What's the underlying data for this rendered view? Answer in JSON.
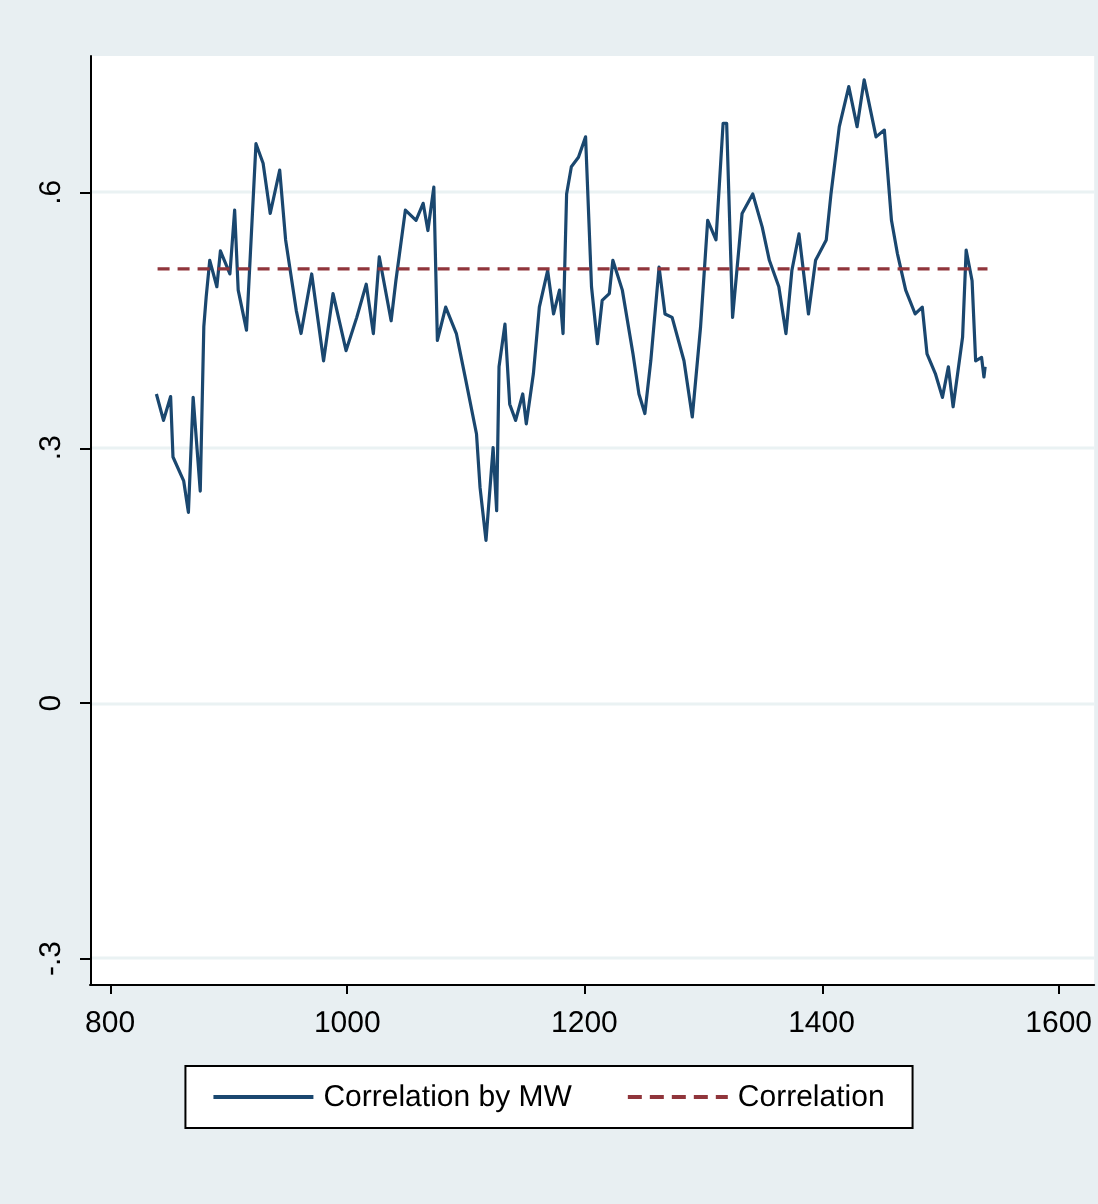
{
  "chart_data": {
    "type": "line",
    "xlim": [
      783,
      1630
    ],
    "ylim": [
      -0.33,
      0.76
    ],
    "xticks": [
      800,
      1000,
      1200,
      1400,
      1600
    ],
    "yticks": [
      {
        "value": -0.3,
        "label": "-.3"
      },
      {
        "value": 0,
        "label": "0"
      },
      {
        "value": 0.3,
        "label": ".3"
      },
      {
        "value": 0.6,
        "label": ".6"
      }
    ],
    "grid": "y",
    "legend": "bottom",
    "marker": "none",
    "series": [
      {
        "name": "Correlation by MW",
        "color": "#1a476f",
        "line_style": "solid",
        "x": [
          839,
          845,
          851,
          853,
          862,
          866,
          870,
          876,
          879,
          881,
          884,
          890,
          893,
          901,
          905,
          908,
          915,
          923,
          929,
          935,
          943,
          948,
          957,
          961,
          970,
          980,
          988,
          999,
          1008,
          1016,
          1022,
          1027,
          1037,
          1041,
          1049,
          1058,
          1064,
          1068,
          1073,
          1076,
          1083,
          1092,
          1100,
          1109,
          1112,
          1117,
          1123,
          1126,
          1128,
          1133,
          1137,
          1142,
          1148,
          1151,
          1157,
          1162,
          1169,
          1174,
          1179,
          1182,
          1185,
          1189,
          1195,
          1201,
          1206,
          1211,
          1215,
          1221,
          1224,
          1232,
          1241,
          1246,
          1251,
          1256,
          1263,
          1268,
          1274,
          1284,
          1291,
          1298,
          1304,
          1311,
          1317,
          1320,
          1325,
          1333,
          1342,
          1350,
          1356,
          1364,
          1370,
          1375,
          1381,
          1389,
          1395,
          1404,
          1408,
          1415,
          1423,
          1430,
          1436,
          1446,
          1453,
          1459,
          1464,
          1471,
          1479,
          1485,
          1489,
          1496,
          1502,
          1507,
          1511,
          1519,
          1522,
          1527,
          1530,
          1535,
          1537,
          1538
        ],
        "values": [
          0.363,
          0.332,
          0.36,
          0.289,
          0.261,
          0.224,
          0.359,
          0.249,
          0.442,
          0.477,
          0.52,
          0.489,
          0.531,
          0.504,
          0.579,
          0.485,
          0.438,
          0.657,
          0.634,
          0.575,
          0.626,
          0.544,
          0.461,
          0.434,
          0.504,
          0.402,
          0.481,
          0.414,
          0.453,
          0.492,
          0.434,
          0.524,
          0.449,
          0.496,
          0.579,
          0.567,
          0.587,
          0.555,
          0.606,
          0.426,
          0.465,
          0.434,
          0.379,
          0.316,
          0.253,
          0.191,
          0.3,
          0.226,
          0.395,
          0.445,
          0.351,
          0.332,
          0.363,
          0.328,
          0.387,
          0.465,
          0.508,
          0.457,
          0.485,
          0.434,
          0.598,
          0.63,
          0.641,
          0.665,
          0.489,
          0.422,
          0.473,
          0.481,
          0.52,
          0.485,
          0.41,
          0.363,
          0.34,
          0.402,
          0.512,
          0.457,
          0.453,
          0.402,
          0.336,
          0.442,
          0.567,
          0.544,
          0.681,
          0.681,
          0.453,
          0.575,
          0.598,
          0.559,
          0.52,
          0.489,
          0.434,
          0.508,
          0.551,
          0.457,
          0.52,
          0.544,
          0.598,
          0.677,
          0.724,
          0.677,
          0.732,
          0.665,
          0.673,
          0.567,
          0.528,
          0.485,
          0.457,
          0.465,
          0.41,
          0.387,
          0.359,
          0.395,
          0.348,
          0.43,
          0.532,
          0.496,
          0.402,
          0.406,
          0.383,
          0.395
        ]
      },
      {
        "name": "Correlation",
        "color": "#90353b",
        "line_style": "dashed",
        "x": [
          840,
          1540
        ],
        "values": [
          0.51,
          0.51
        ]
      }
    ]
  }
}
